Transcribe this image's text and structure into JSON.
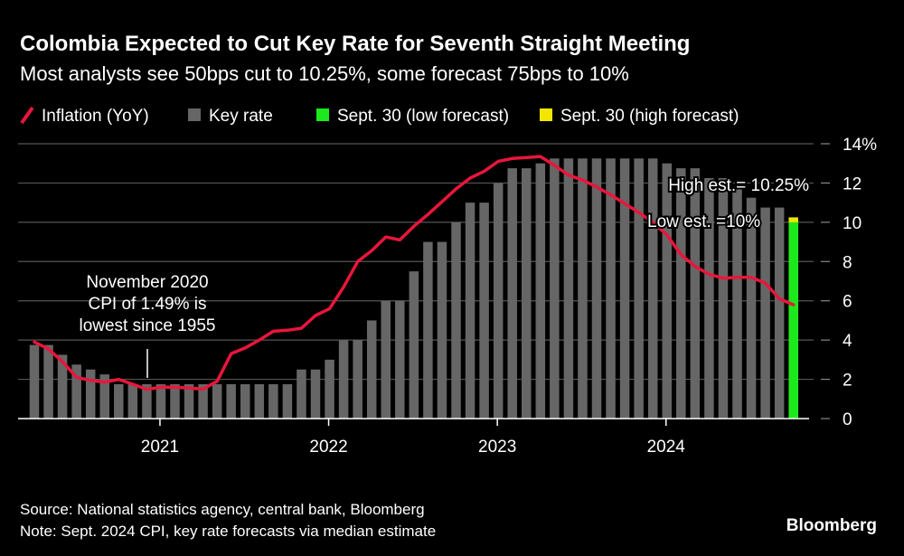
{
  "colors": {
    "inflation": "#e8163c",
    "key_rate": "#666666",
    "low_forecast": "#1de81d",
    "high_forecast": "#f2e600",
    "background": "#000000",
    "grid": "#555555"
  },
  "chart_data": {
    "type": "bar",
    "title": "Colombia Expected to Cut Key Rate for Seventh Straight Meeting",
    "subtitle": "Most analysts see 50bps cut to 10.25%, some forecast 75bps to 10%",
    "legend": [
      "Inflation (YoY)",
      "Key rate",
      "Sept. 30 (low forecast)",
      "Sept. 30 (high forecast)"
    ],
    "legend_placement": "top-left",
    "x_ticks": [
      {
        "label": "2021",
        "index": 9
      },
      {
        "label": "2022",
        "index": 21
      },
      {
        "label": "2023",
        "index": 33
      },
      {
        "label": "2024",
        "index": 45
      }
    ],
    "y_ticks": [
      "0",
      "2",
      "4",
      "6",
      "8",
      "10",
      "12",
      "14%"
    ],
    "ylim": [
      0,
      14
    ],
    "grid": true,
    "series": [
      {
        "name": "Key rate",
        "type": "bar",
        "values": [
          3.75,
          3.75,
          3.25,
          2.75,
          2.5,
          2.25,
          1.75,
          1.75,
          1.75,
          1.75,
          1.75,
          1.75,
          1.75,
          1.75,
          1.75,
          1.75,
          1.75,
          1.75,
          1.75,
          2.5,
          2.5,
          3.0,
          4.0,
          4.0,
          5.0,
          6.0,
          6.0,
          7.5,
          9.0,
          9.0,
          10.0,
          11.0,
          11.0,
          12.0,
          12.75,
          12.75,
          13.0,
          13.25,
          13.25,
          13.25,
          13.25,
          13.25,
          13.25,
          13.25,
          13.25,
          13.0,
          12.75,
          12.75,
          12.25,
          12.25,
          11.75,
          11.25,
          10.75,
          10.75
        ]
      },
      {
        "name": "Inflation (YoY)",
        "type": "line",
        "values": [
          3.9,
          3.55,
          2.9,
          2.1,
          1.95,
          1.85,
          2.0,
          1.75,
          1.49,
          1.6,
          1.6,
          1.55,
          1.5,
          1.9,
          3.3,
          3.6,
          4.0,
          4.45,
          4.5,
          4.6,
          5.25,
          5.6,
          6.7,
          8.0,
          8.55,
          9.25,
          9.1,
          9.8,
          10.4,
          11.05,
          11.7,
          12.25,
          12.6,
          13.1,
          13.25,
          13.3,
          13.35,
          12.9,
          12.4,
          12.15,
          11.8,
          11.4,
          10.95,
          10.5,
          10.0,
          9.35,
          8.35,
          7.75,
          7.35,
          7.15,
          7.2,
          7.2,
          6.9,
          6.1,
          5.8
        ]
      },
      {
        "name": "Sept. 30 (low forecast)",
        "type": "bar",
        "index": 54,
        "value": 10.0
      },
      {
        "name": "Sept. 30 (high forecast)",
        "type": "bar",
        "index": 54,
        "value": 10.25
      }
    ],
    "annotations": {
      "cpi_low": [
        "November 2020",
        "CPI of 1.49% is",
        "lowest since 1955"
      ],
      "high_est": "High est.= 10.25%",
      "low_est": "Low est. =10%"
    }
  },
  "footer": {
    "source": "Source: National statistics agency, central bank, Bloomberg",
    "note": "Note: Sept. 2024 CPI, key rate forecasts via median estimate",
    "logo": "Bloomberg"
  }
}
